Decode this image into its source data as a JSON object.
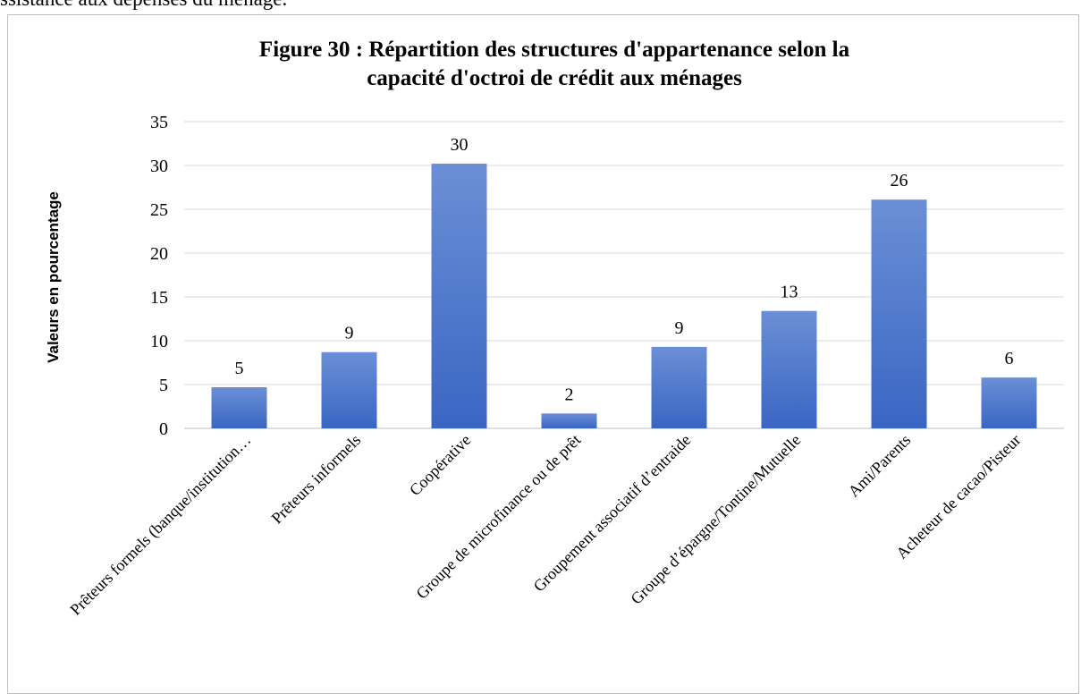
{
  "page": {
    "top_text": "ssistance aux dépenses du ménage."
  },
  "chart_data": {
    "type": "bar",
    "title": "Figure 30 : Répartition des structures d'appartenance selon la capacité d'octroi de crédit aux ménages",
    "title_lines": [
      "Figure 30 : Répartition des structures d'appartenance selon la",
      "capacité d'octroi de crédit aux ménages"
    ],
    "xlabel": "",
    "ylabel": "Valeurs en pourcentage",
    "categories": [
      "Prêteurs formels (banque/institution…",
      "Prêteurs informels",
      "Coopérative",
      "Groupe de microfinance ou de prêt",
      "Groupement associatif d’entraide",
      "Groupe d’épargne/Tontine/Mutuelle",
      "Ami/Parents",
      "Acheteur de cacao/Pisteur"
    ],
    "values": [
      4.7,
      8.7,
      30.2,
      1.7,
      9.3,
      13.4,
      26.1,
      5.8
    ],
    "data_labels": [
      "5",
      "9",
      "30",
      "2",
      "9",
      "13",
      "26",
      "6"
    ],
    "ylim": [
      0,
      35
    ],
    "yticks": [
      0,
      5,
      10,
      15,
      20,
      25,
      30,
      35
    ],
    "grid": true,
    "legend": "none",
    "colors": {
      "bar_top": "#6b8fd6",
      "bar_bottom": "#3a66c3",
      "grid": "#d9d9d9",
      "axis": "#bfbfbf"
    }
  }
}
